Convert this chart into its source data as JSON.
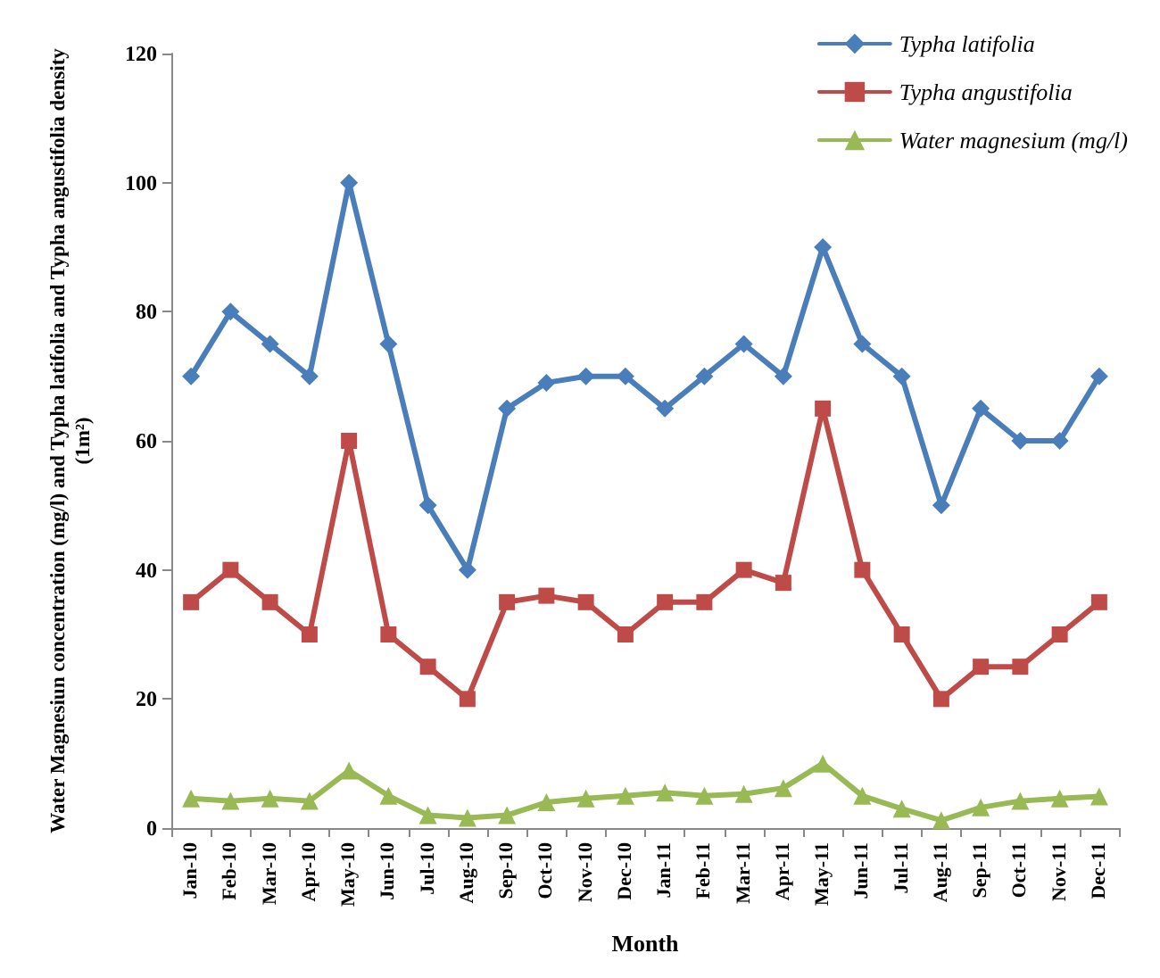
{
  "chart_data": {
    "type": "line",
    "xlabel": "Month",
    "ylabel": "Water Magnesiun concentration (mg/l) and Typha latifolia and Typha angustifolia density\n(1m²)",
    "categories": [
      "Jan-10",
      "Feb-10",
      "Mar-10",
      "Apr-10",
      "May-10",
      "Jun-10",
      "Jul-10",
      "Aug-10",
      "Sep-10",
      "Oct-10",
      "Nov-10",
      "Dec-10",
      "Jan-11",
      "Feb-11",
      "Mar-11",
      "Apr-11",
      "May-11",
      "Jun-11",
      "Jul-11",
      "Aug-11",
      "Sep-11",
      "Oct-11",
      "Nov-11",
      "Dec-11"
    ],
    "series": [
      {
        "name": "Typha latifolia",
        "color": "#4a7ebb",
        "marker": "diamond",
        "values": [
          70,
          80,
          75,
          70,
          100,
          75,
          50,
          40,
          65,
          69,
          70,
          70,
          65,
          70,
          75,
          70,
          90,
          75,
          70,
          50,
          65,
          60,
          60,
          70
        ]
      },
      {
        "name": "Typha angustifolia",
        "color": "#be4b48",
        "marker": "square",
        "values": [
          35,
          40,
          35,
          30,
          60,
          30,
          25,
          20,
          35,
          36,
          35,
          30,
          35,
          35,
          40,
          38,
          65,
          40,
          30,
          20,
          25,
          25,
          30,
          35
        ]
      },
      {
        "name": "Water magnesium (mg/l)",
        "color": "#98b954",
        "marker": "triangle",
        "values": [
          4.6,
          4.2,
          4.6,
          4.2,
          8.9,
          5,
          2,
          1.6,
          2,
          4,
          4.6,
          5,
          5.5,
          5,
          5.3,
          6.2,
          10,
          5,
          3,
          1.2,
          3.2,
          4.2,
          4.6,
          4.9
        ]
      }
    ],
    "ylim": [
      0,
      120
    ],
    "yticks": [
      0,
      20,
      40,
      60,
      80,
      100,
      120
    ],
    "grid": false,
    "legend": "top right",
    "line_style": "solid"
  }
}
